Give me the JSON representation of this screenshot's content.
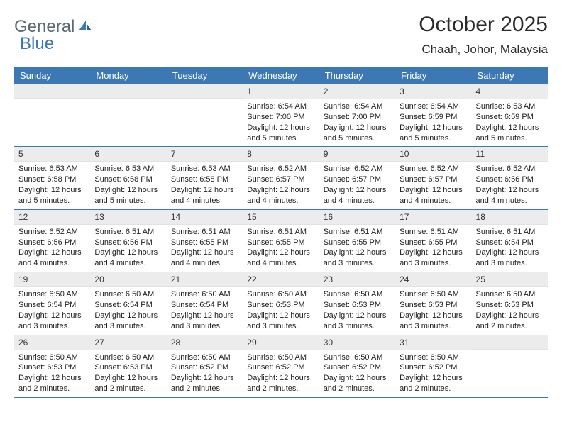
{
  "logo": {
    "text_a": "General",
    "text_b": "Blue"
  },
  "title": "October 2025",
  "location": "Chaah, Johor, Malaysia",
  "colors": {
    "header_bg": "#3c78b4",
    "header_text": "#ffffff",
    "daynum_bg": "#ececec",
    "border": "#3c78b4",
    "body_text": "#222222",
    "logo_gray": "#5c6870",
    "logo_blue": "#3c78b4",
    "background": "#ffffff"
  },
  "typography": {
    "title_fontsize": 30,
    "location_fontsize": 17,
    "dayheader_fontsize": 13,
    "cell_fontsize": 11
  },
  "days_of_week": [
    "Sunday",
    "Monday",
    "Tuesday",
    "Wednesday",
    "Thursday",
    "Friday",
    "Saturday"
  ],
  "grid": [
    [
      null,
      null,
      null,
      {
        "n": "1",
        "sunrise": "6:54 AM",
        "sunset": "7:00 PM",
        "daylight": "12 hours and 5 minutes."
      },
      {
        "n": "2",
        "sunrise": "6:54 AM",
        "sunset": "7:00 PM",
        "daylight": "12 hours and 5 minutes."
      },
      {
        "n": "3",
        "sunrise": "6:54 AM",
        "sunset": "6:59 PM",
        "daylight": "12 hours and 5 minutes."
      },
      {
        "n": "4",
        "sunrise": "6:53 AM",
        "sunset": "6:59 PM",
        "daylight": "12 hours and 5 minutes."
      }
    ],
    [
      {
        "n": "5",
        "sunrise": "6:53 AM",
        "sunset": "6:58 PM",
        "daylight": "12 hours and 5 minutes."
      },
      {
        "n": "6",
        "sunrise": "6:53 AM",
        "sunset": "6:58 PM",
        "daylight": "12 hours and 5 minutes."
      },
      {
        "n": "7",
        "sunrise": "6:53 AM",
        "sunset": "6:58 PM",
        "daylight": "12 hours and 4 minutes."
      },
      {
        "n": "8",
        "sunrise": "6:52 AM",
        "sunset": "6:57 PM",
        "daylight": "12 hours and 4 minutes."
      },
      {
        "n": "9",
        "sunrise": "6:52 AM",
        "sunset": "6:57 PM",
        "daylight": "12 hours and 4 minutes."
      },
      {
        "n": "10",
        "sunrise": "6:52 AM",
        "sunset": "6:57 PM",
        "daylight": "12 hours and 4 minutes."
      },
      {
        "n": "11",
        "sunrise": "6:52 AM",
        "sunset": "6:56 PM",
        "daylight": "12 hours and 4 minutes."
      }
    ],
    [
      {
        "n": "12",
        "sunrise": "6:52 AM",
        "sunset": "6:56 PM",
        "daylight": "12 hours and 4 minutes."
      },
      {
        "n": "13",
        "sunrise": "6:51 AM",
        "sunset": "6:56 PM",
        "daylight": "12 hours and 4 minutes."
      },
      {
        "n": "14",
        "sunrise": "6:51 AM",
        "sunset": "6:55 PM",
        "daylight": "12 hours and 4 minutes."
      },
      {
        "n": "15",
        "sunrise": "6:51 AM",
        "sunset": "6:55 PM",
        "daylight": "12 hours and 4 minutes."
      },
      {
        "n": "16",
        "sunrise": "6:51 AM",
        "sunset": "6:55 PM",
        "daylight": "12 hours and 3 minutes."
      },
      {
        "n": "17",
        "sunrise": "6:51 AM",
        "sunset": "6:55 PM",
        "daylight": "12 hours and 3 minutes."
      },
      {
        "n": "18",
        "sunrise": "6:51 AM",
        "sunset": "6:54 PM",
        "daylight": "12 hours and 3 minutes."
      }
    ],
    [
      {
        "n": "19",
        "sunrise": "6:50 AM",
        "sunset": "6:54 PM",
        "daylight": "12 hours and 3 minutes."
      },
      {
        "n": "20",
        "sunrise": "6:50 AM",
        "sunset": "6:54 PM",
        "daylight": "12 hours and 3 minutes."
      },
      {
        "n": "21",
        "sunrise": "6:50 AM",
        "sunset": "6:54 PM",
        "daylight": "12 hours and 3 minutes."
      },
      {
        "n": "22",
        "sunrise": "6:50 AM",
        "sunset": "6:53 PM",
        "daylight": "12 hours and 3 minutes."
      },
      {
        "n": "23",
        "sunrise": "6:50 AM",
        "sunset": "6:53 PM",
        "daylight": "12 hours and 3 minutes."
      },
      {
        "n": "24",
        "sunrise": "6:50 AM",
        "sunset": "6:53 PM",
        "daylight": "12 hours and 3 minutes."
      },
      {
        "n": "25",
        "sunrise": "6:50 AM",
        "sunset": "6:53 PM",
        "daylight": "12 hours and 2 minutes."
      }
    ],
    [
      {
        "n": "26",
        "sunrise": "6:50 AM",
        "sunset": "6:53 PM",
        "daylight": "12 hours and 2 minutes."
      },
      {
        "n": "27",
        "sunrise": "6:50 AM",
        "sunset": "6:53 PM",
        "daylight": "12 hours and 2 minutes."
      },
      {
        "n": "28",
        "sunrise": "6:50 AM",
        "sunset": "6:52 PM",
        "daylight": "12 hours and 2 minutes."
      },
      {
        "n": "29",
        "sunrise": "6:50 AM",
        "sunset": "6:52 PM",
        "daylight": "12 hours and 2 minutes."
      },
      {
        "n": "30",
        "sunrise": "6:50 AM",
        "sunset": "6:52 PM",
        "daylight": "12 hours and 2 minutes."
      },
      {
        "n": "31",
        "sunrise": "6:50 AM",
        "sunset": "6:52 PM",
        "daylight": "12 hours and 2 minutes."
      },
      null
    ]
  ],
  "labels": {
    "sunrise": "Sunrise: ",
    "sunset": "Sunset: ",
    "daylight": "Daylight: "
  }
}
